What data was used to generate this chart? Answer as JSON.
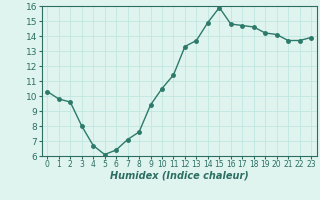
{
  "x": [
    0,
    1,
    2,
    3,
    4,
    5,
    6,
    7,
    8,
    9,
    10,
    11,
    12,
    13,
    14,
    15,
    16,
    17,
    18,
    19,
    20,
    21,
    22,
    23
  ],
  "y": [
    10.3,
    9.8,
    9.6,
    8.0,
    6.7,
    6.1,
    6.4,
    7.1,
    7.6,
    9.4,
    10.5,
    11.4,
    13.3,
    13.7,
    14.9,
    15.9,
    14.8,
    14.7,
    14.6,
    14.2,
    14.1,
    13.7,
    13.7,
    13.9
  ],
  "line_color": "#2d7a6a",
  "marker": "o",
  "markersize": 2.5,
  "linewidth": 1.0,
  "xlabel": "Humidex (Indice chaleur)",
  "xlabel_fontsize": 7,
  "xlabel_fontweight": "bold",
  "xlabel_style": "italic",
  "ylim": [
    6,
    16
  ],
  "xlim": [
    -0.5,
    23.5
  ],
  "yticks": [
    6,
    7,
    8,
    9,
    10,
    11,
    12,
    13,
    14,
    15,
    16
  ],
  "xticks": [
    0,
    1,
    2,
    3,
    4,
    5,
    6,
    7,
    8,
    9,
    10,
    11,
    12,
    13,
    14,
    15,
    16,
    17,
    18,
    19,
    20,
    21,
    22,
    23
  ],
  "grid_color": "#c0e8e0",
  "background_color": "#dff4ef",
  "tick_color": "#2d6e62",
  "spine_color": "#2d6e62",
  "xtick_fontsize": 5.5,
  "ytick_fontsize": 6.5
}
